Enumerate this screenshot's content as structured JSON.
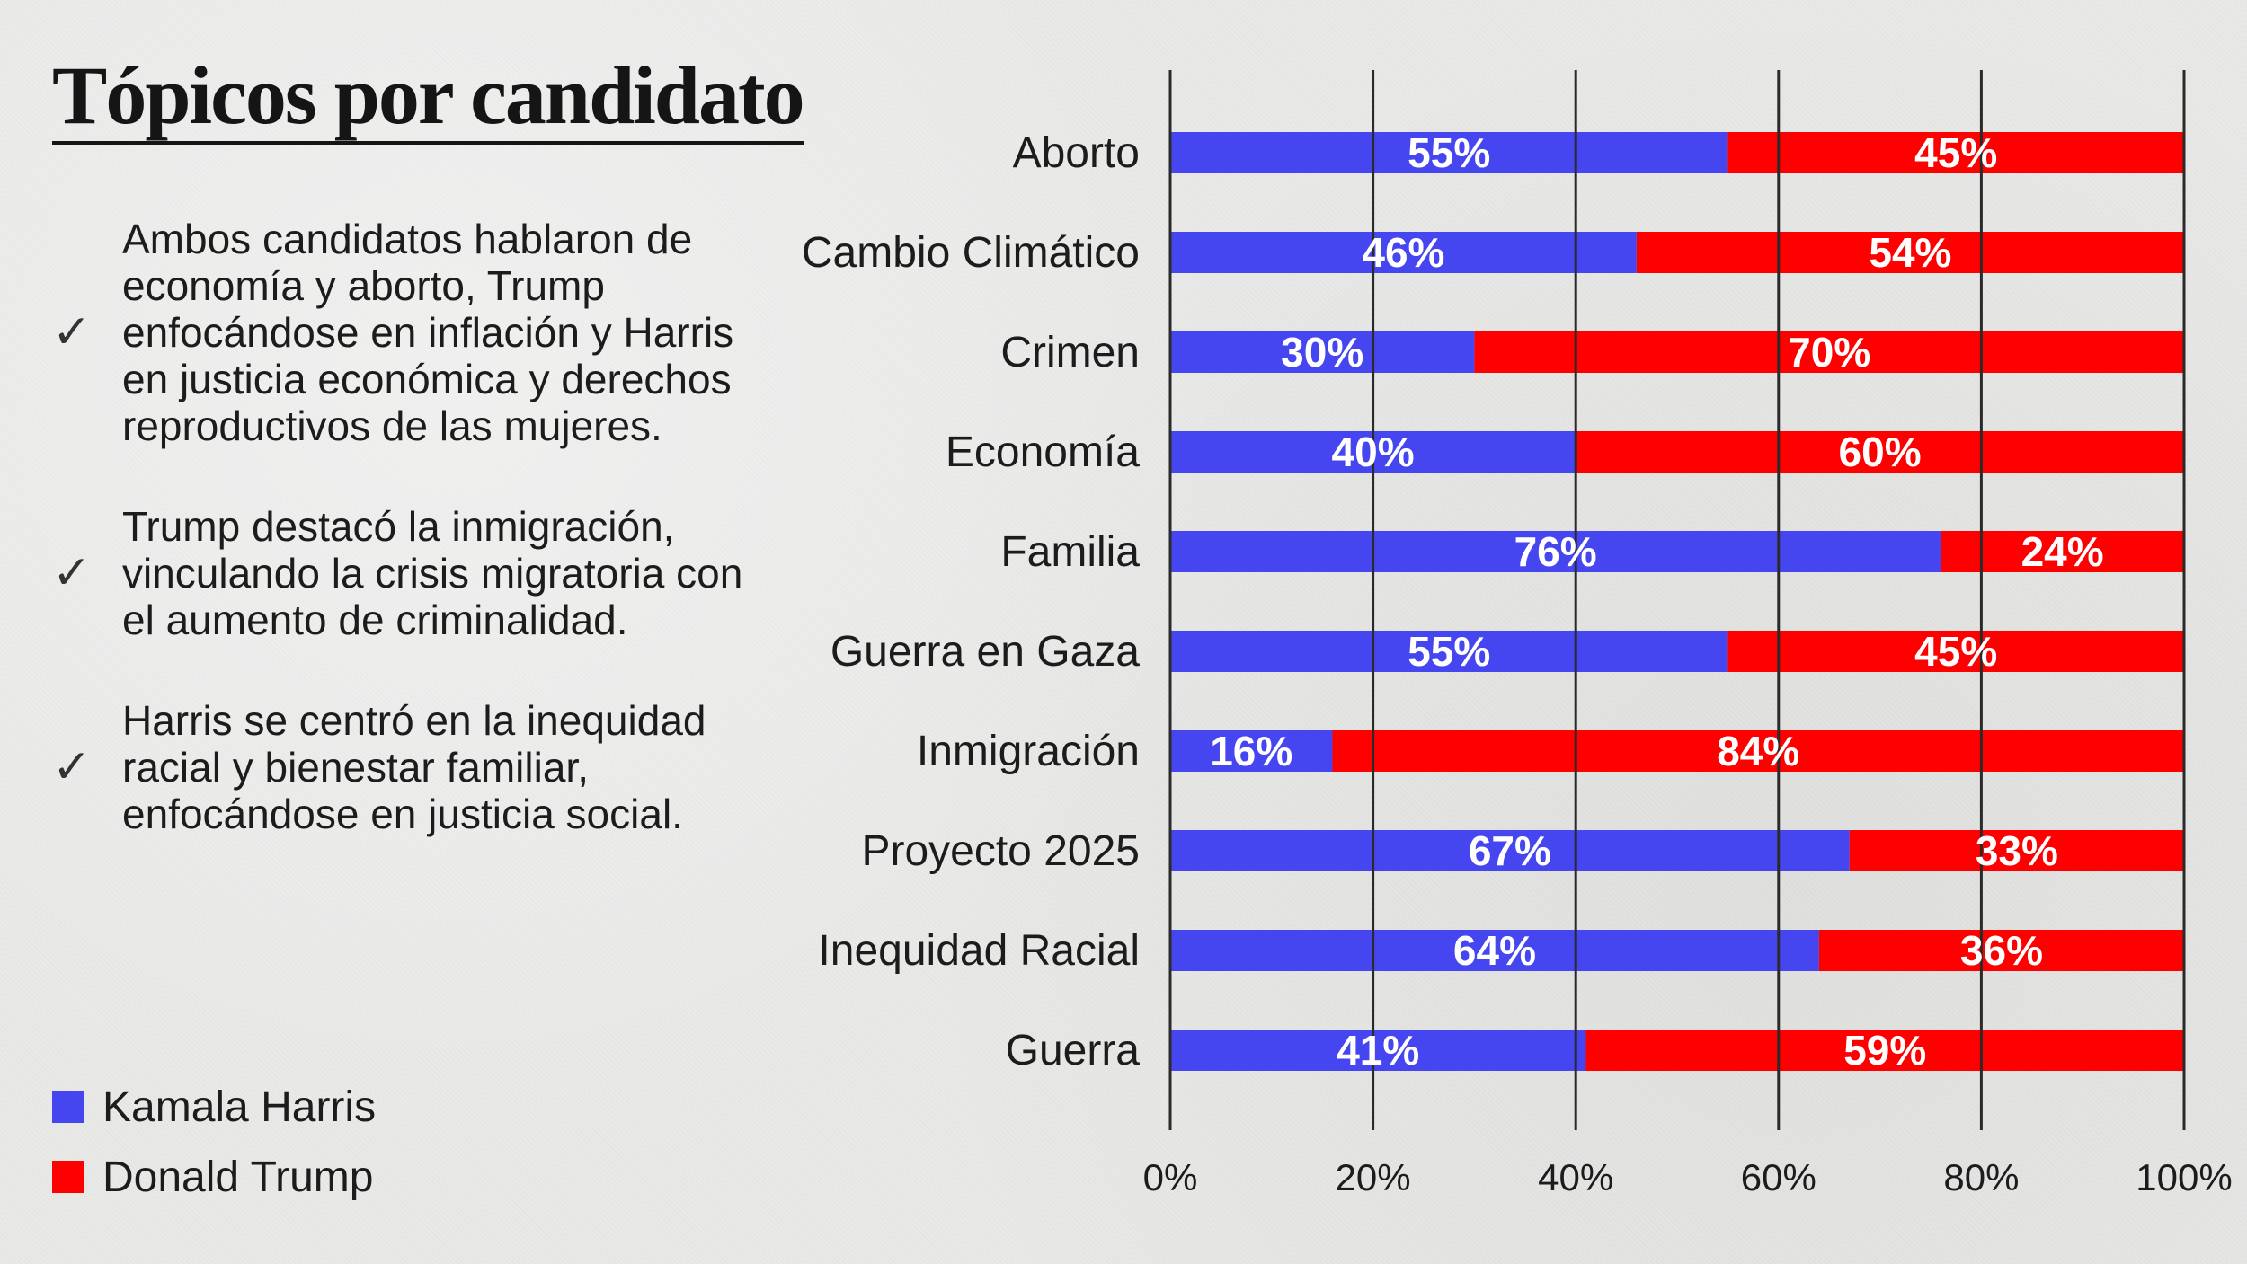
{
  "title": "Tópicos por candidato",
  "notes": [
    "Ambos candidatos hablaron de economía y aborto, Trump enfocándose en inflación y Harris en justicia económica y derechos reproductivos de las mujeres.",
    "Trump destacó la inmigración, vinculando la crisis migratoria con el aumento de criminalidad.",
    "Harris se centró en la inequidad racial y bienestar familiar, enfocándose en justicia social."
  ],
  "check_icon": "✓",
  "legend": [
    {
      "label": "Kamala Harris",
      "color": "#4646f0"
    },
    {
      "label": "Donald Trump",
      "color": "#fe0000"
    }
  ],
  "chart_data": {
    "type": "bar",
    "orientation": "horizontal",
    "stacked": true,
    "title": "Tópicos por candidato",
    "categories": [
      "Aborto",
      "Cambio Climático",
      "Crimen",
      "Economía",
      "Familia",
      "Guerra en Gaza",
      "Inmigración",
      "Proyecto 2025",
      "Inequidad Racial",
      "Guerra"
    ],
    "series": [
      {
        "name": "Kamala Harris",
        "color": "#4646f0",
        "values": [
          55,
          46,
          30,
          40,
          76,
          55,
          16,
          67,
          64,
          41
        ],
        "labels": [
          "55%",
          "46%",
          "30%",
          "40%",
          "76%",
          "55%",
          "16%",
          "67%",
          "64%",
          "41%"
        ]
      },
      {
        "name": "Donald Trump",
        "color": "#fe0000",
        "values": [
          45,
          54,
          70,
          60,
          24,
          45,
          84,
          33,
          36,
          59
        ],
        "labels": [
          "45%",
          "54%",
          "70%",
          "60%",
          "24%",
          "45%",
          "84%",
          "33%",
          "36%",
          "59%"
        ]
      }
    ],
    "xlim": [
      0,
      100
    ],
    "xticks": [
      0,
      20,
      40,
      60,
      80,
      100
    ],
    "xtick_labels": [
      "0%",
      "20%",
      "40%",
      "60%",
      "80%",
      "100%"
    ],
    "grid": true,
    "legend": "bottom-left"
  }
}
